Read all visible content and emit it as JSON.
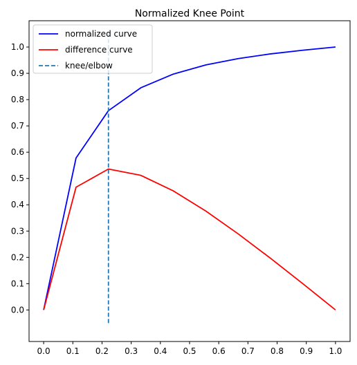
{
  "chart_data": {
    "type": "line",
    "title": "Normalized Knee Point",
    "xlabel": "",
    "ylabel": "",
    "xlim": [
      -0.05,
      1.05
    ],
    "ylim": [
      -0.12,
      1.1
    ],
    "x_ticks": [
      0.0,
      0.1,
      0.2,
      0.3,
      0.4,
      0.5,
      0.6,
      0.7,
      0.8,
      0.9,
      1.0
    ],
    "x_tick_labels": [
      "0.0",
      "0.1",
      "0.2",
      "0.3",
      "0.4",
      "0.5",
      "0.6",
      "0.7",
      "0.8",
      "0.9",
      "1.0"
    ],
    "y_ticks": [
      0.0,
      0.1,
      0.2,
      0.3,
      0.4,
      0.5,
      0.6,
      0.7,
      0.8,
      0.9,
      1.0
    ],
    "y_tick_labels": [
      "0.0",
      "0.1",
      "0.2",
      "0.3",
      "0.4",
      "0.5",
      "0.6",
      "0.7",
      "0.8",
      "0.9",
      "1.0"
    ],
    "grid": false,
    "legend_position": "top-left",
    "series": [
      {
        "name": "normalized curve",
        "color": "#0000ff",
        "style": "solid",
        "x": [
          0.0,
          0.111,
          0.222,
          0.333,
          0.444,
          0.556,
          0.667,
          0.778,
          0.889,
          1.0
        ],
        "y": [
          0.0,
          0.578,
          0.758,
          0.845,
          0.897,
          0.932,
          0.956,
          0.974,
          0.988,
          1.0
        ]
      },
      {
        "name": "difference curve",
        "color": "#ff0000",
        "style": "solid",
        "x": [
          0.0,
          0.111,
          0.222,
          0.333,
          0.444,
          0.556,
          0.667,
          0.778,
          0.889,
          1.0
        ],
        "y": [
          0.0,
          0.467,
          0.536,
          0.512,
          0.453,
          0.376,
          0.289,
          0.196,
          0.099,
          0.0
        ]
      }
    ],
    "knee": {
      "name": "knee/elbow",
      "color": "#1f77b4",
      "style": "dashed",
      "x": 0.222,
      "y_range": [
        -0.05,
        1.05
      ]
    }
  }
}
